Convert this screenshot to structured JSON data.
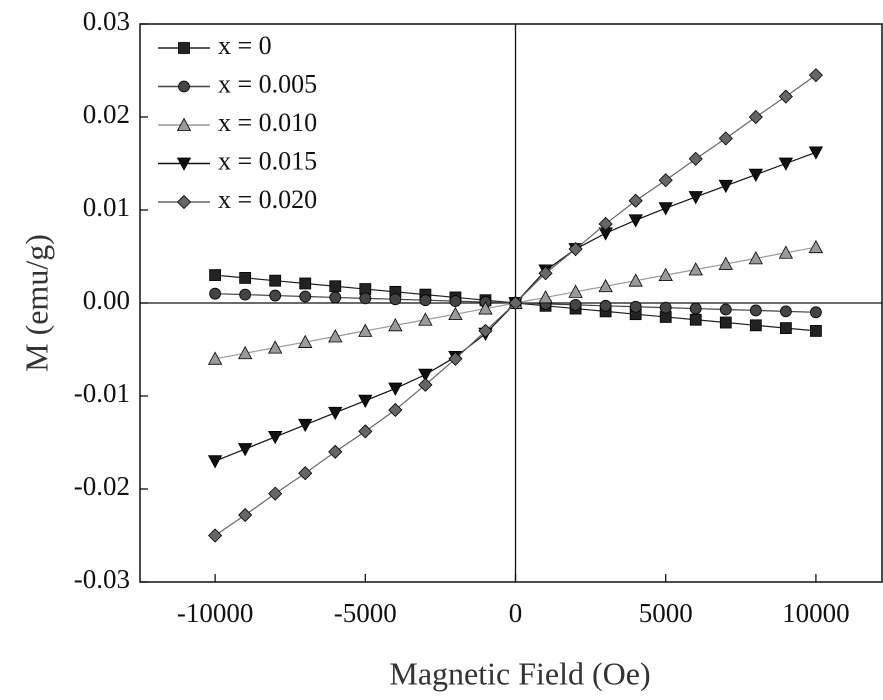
{
  "chart_data": {
    "type": "scatter",
    "x_label": "Magnetic Field (Oe)",
    "y_label": "M (emu/g)",
    "x": [
      -10000,
      -9000,
      -8000,
      -7000,
      -6000,
      -5000,
      -4000,
      -3000,
      -2000,
      -1000,
      0,
      1000,
      2000,
      3000,
      4000,
      5000,
      6000,
      7000,
      8000,
      9000,
      10000
    ],
    "series": [
      {
        "name": "x = 0",
        "color": "#222222",
        "marker": "square",
        "values": [
          0.003,
          0.0027,
          0.0024,
          0.0021,
          0.0018,
          0.0015,
          0.0012,
          0.0009,
          0.0006,
          0.0003,
          0,
          -0.0003,
          -0.0006,
          -0.0009,
          -0.0012,
          -0.0015,
          -0.0018,
          -0.0021,
          -0.0024,
          -0.0027,
          -0.003
        ]
      },
      {
        "name": "x = 0.005",
        "color": "#444444",
        "marker": "circle",
        "values": [
          0.001,
          0.0009,
          0.0008,
          0.0007,
          0.0006,
          0.0005,
          0.0004,
          0.0003,
          0.0002,
          0.0001,
          0,
          -0.0001,
          -0.0002,
          -0.0003,
          -0.0004,
          -0.0005,
          -0.0006,
          -0.0007,
          -0.0008,
          -0.0009,
          -0.001
        ]
      },
      {
        "name": "x = 0.010",
        "color": "#9a9a9a",
        "marker": "triangle-up",
        "values": [
          -0.006,
          -0.0054,
          -0.0048,
          -0.0042,
          -0.0036,
          -0.003,
          -0.0024,
          -0.0018,
          -0.0012,
          -0.0006,
          0,
          0.0006,
          0.0012,
          0.0018,
          0.0024,
          0.003,
          0.0036,
          0.0042,
          0.0048,
          0.0054,
          0.006
        ]
      },
      {
        "name": "x = 0.015",
        "color": "#111111",
        "marker": "triangle-down",
        "values": [
          -0.017,
          -0.0157,
          -0.0144,
          -0.0131,
          -0.0118,
          -0.0105,
          -0.0092,
          -0.0077,
          -0.0058,
          -0.0033,
          0,
          0.0035,
          0.0058,
          0.0075,
          0.0089,
          0.0102,
          0.0114,
          0.0126,
          0.0138,
          0.015,
          0.0162
        ]
      },
      {
        "name": "x = 0.020",
        "color": "#666666",
        "marker": "diamond",
        "values": [
          -0.025,
          -0.0228,
          -0.0205,
          -0.0183,
          -0.016,
          -0.0138,
          -0.0115,
          -0.0088,
          -0.006,
          -0.003,
          0,
          0.0032,
          0.0058,
          0.0085,
          0.011,
          0.0132,
          0.0155,
          0.0177,
          0.02,
          0.0222,
          0.0245
        ]
      }
    ],
    "xlim": [
      -12500,
      12200
    ],
    "ylim": [
      -0.03,
      0.03
    ],
    "xticks": [
      -10000,
      -5000,
      0,
      5000,
      10000
    ],
    "yticks": [
      -0.03,
      -0.02,
      -0.01,
      {
        "value": 0,
        "label": "0.00"
      },
      0.01,
      0.02,
      0.03
    ],
    "grid": false,
    "legend": "upper-left"
  }
}
